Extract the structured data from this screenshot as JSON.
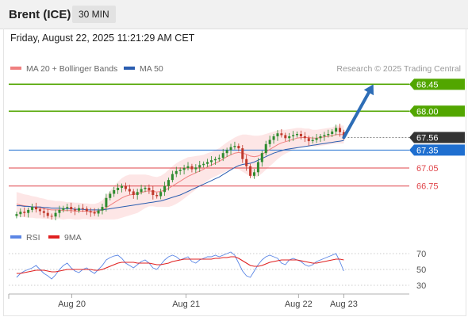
{
  "header": {
    "title": "Brent (ICE)",
    "interval": "30 MIN",
    "datetime": "Friday, August 22, 2025 11:21:29 AM CET"
  },
  "colors": {
    "support": "#e0454a",
    "resistance": "#52a600",
    "current": "#333333",
    "pivot": "#1f6fd0",
    "ma20": "#f08080",
    "ma50": "#2a5db0",
    "bollinger_fill": "#fde3e3",
    "candle_up": "#2e8b2e",
    "candle_down": "#c0392b",
    "arrow": "#2d6db6",
    "rsi": "#5b86e5",
    "rsi_ma": "#e02020"
  },
  "chart_data": [
    {
      "type": "candlestick",
      "legend": [
        {
          "name": "MA 20 + Bollinger Bands",
          "color": "#f08080"
        },
        {
          "name": "MA 50",
          "color": "#2a5db0"
        }
      ],
      "watermark": "Research © 2025 Trading Central",
      "ylim": [
        66.15,
        68.6
      ],
      "xlim": [
        0,
        100
      ],
      "x_ticks": [
        {
          "label": "Aug 20",
          "x": 16
        },
        {
          "label": "Aug 21",
          "x": 45
        },
        {
          "label": "Aug 22",
          "x": 73.5
        },
        {
          "label": "Aug 23",
          "x": 85
        }
      ],
      "levels": [
        {
          "value": 68.45,
          "label": "68.45",
          "role": "resistance",
          "style": "box"
        },
        {
          "value": 68.0,
          "label": "68.00",
          "role": "resistance",
          "style": "box"
        },
        {
          "value": 67.56,
          "label": "67.56",
          "role": "current",
          "style": "box"
        },
        {
          "value": 67.35,
          "label": "67.35",
          "role": "pivot",
          "style": "box"
        },
        {
          "value": 67.05,
          "label": "67.05",
          "role": "support",
          "style": "text"
        },
        {
          "value": 66.75,
          "label": "66.75",
          "role": "support",
          "style": "text"
        }
      ],
      "forecast_arrow": {
        "from": [
          85,
          67.56
        ],
        "to": [
          92.5,
          68.45
        ]
      },
      "close": [
        66.28,
        66.32,
        66.3,
        66.35,
        66.4,
        66.36,
        66.33,
        66.3,
        66.25,
        66.24,
        66.3,
        66.35,
        66.38,
        66.4,
        66.36,
        66.34,
        66.38,
        66.37,
        66.33,
        66.31,
        66.29,
        66.34,
        66.4,
        66.55,
        66.62,
        66.68,
        66.72,
        66.75,
        66.7,
        66.66,
        66.6,
        66.65,
        66.7,
        66.72,
        66.68,
        66.6,
        66.58,
        66.65,
        66.75,
        66.85,
        66.95,
        67.0,
        67.02,
        67.05,
        67.08,
        67.03,
        67.06,
        67.1,
        67.12,
        67.15,
        67.18,
        67.2,
        67.22,
        67.3,
        67.35,
        67.4,
        67.42,
        67.38,
        67.2,
        67.08,
        66.92,
        66.98,
        67.15,
        67.3,
        67.45,
        67.52,
        67.58,
        67.63,
        67.6,
        67.55,
        67.58,
        67.6,
        67.62,
        67.58,
        67.55,
        67.5,
        67.52,
        67.55,
        67.58,
        67.6,
        67.62,
        67.66,
        67.72,
        67.65,
        67.56
      ],
      "ma20": [
        66.45,
        66.43,
        66.42,
        66.41,
        66.4,
        66.39,
        66.38,
        66.37,
        66.36,
        66.35,
        66.35,
        66.35,
        66.34,
        66.34,
        66.34,
        66.33,
        66.33,
        66.33,
        66.33,
        66.32,
        66.32,
        66.33,
        66.35,
        66.39,
        66.43,
        66.47,
        66.51,
        66.55,
        66.58,
        66.6,
        66.61,
        66.62,
        66.64,
        66.66,
        66.67,
        66.66,
        66.65,
        66.66,
        66.68,
        66.71,
        66.75,
        66.79,
        66.83,
        66.87,
        66.91,
        66.94,
        66.97,
        67.0,
        67.03,
        67.07,
        67.1,
        67.13,
        67.16,
        67.2,
        67.24,
        67.27,
        67.3,
        67.31,
        67.3,
        67.28,
        67.25,
        67.24,
        67.25,
        67.28,
        67.32,
        67.36,
        67.4,
        67.44,
        67.47,
        67.49,
        67.51,
        67.53,
        67.55,
        67.56,
        67.56,
        67.56,
        67.55,
        67.55,
        67.56,
        67.57,
        67.58,
        67.59,
        67.61,
        67.61,
        67.61
      ],
      "band_width": [
        0.2,
        0.2,
        0.19,
        0.19,
        0.18,
        0.18,
        0.17,
        0.17,
        0.16,
        0.16,
        0.15,
        0.15,
        0.15,
        0.14,
        0.14,
        0.14,
        0.14,
        0.13,
        0.13,
        0.13,
        0.13,
        0.14,
        0.16,
        0.2,
        0.24,
        0.28,
        0.31,
        0.33,
        0.34,
        0.34,
        0.33,
        0.32,
        0.3,
        0.28,
        0.26,
        0.25,
        0.25,
        0.26,
        0.28,
        0.31,
        0.33,
        0.34,
        0.34,
        0.33,
        0.32,
        0.3,
        0.28,
        0.26,
        0.24,
        0.23,
        0.22,
        0.22,
        0.22,
        0.23,
        0.24,
        0.25,
        0.26,
        0.28,
        0.31,
        0.33,
        0.35,
        0.35,
        0.34,
        0.32,
        0.3,
        0.28,
        0.26,
        0.24,
        0.22,
        0.2,
        0.19,
        0.18,
        0.17,
        0.16,
        0.15,
        0.15,
        0.14,
        0.14,
        0.14,
        0.14,
        0.14,
        0.14,
        0.15,
        0.15,
        0.15
      ],
      "ma50": [
        66.42,
        66.42,
        66.41,
        66.41,
        66.4,
        66.4,
        66.4,
        66.39,
        66.39,
        66.38,
        66.38,
        66.38,
        66.37,
        66.37,
        66.37,
        66.36,
        66.36,
        66.36,
        66.35,
        66.35,
        66.35,
        66.35,
        66.35,
        66.36,
        66.37,
        66.38,
        66.39,
        66.4,
        66.41,
        66.42,
        66.43,
        66.44,
        66.45,
        66.46,
        66.47,
        66.48,
        66.49,
        66.5,
        66.52,
        66.54,
        66.56,
        66.58,
        66.6,
        66.63,
        66.66,
        66.69,
        66.72,
        66.75,
        66.78,
        66.81,
        66.84,
        66.87,
        66.9,
        66.94,
        66.98,
        67.02,
        67.06,
        67.09,
        67.11,
        67.12,
        67.13,
        67.15,
        67.18,
        67.21,
        67.24,
        67.27,
        67.3,
        67.32,
        67.34,
        67.36,
        67.37,
        67.38,
        67.39,
        67.4,
        67.41,
        67.42,
        67.43,
        67.44,
        67.45,
        67.46,
        67.47,
        67.48,
        67.49,
        67.5,
        67.51
      ]
    },
    {
      "type": "line",
      "legend": [
        {
          "name": "RSI",
          "color": "#5b86e5"
        },
        {
          "name": "9MA",
          "color": "#e02020"
        }
      ],
      "ylim": [
        22,
        78
      ],
      "y_ticks": [
        70,
        50,
        30
      ],
      "rsi": [
        40,
        45,
        48,
        50,
        52,
        55,
        50,
        45,
        42,
        38,
        43,
        50,
        55,
        58,
        52,
        48,
        46,
        50,
        52,
        48,
        45,
        50,
        55,
        62,
        65,
        67,
        68,
        64,
        58,
        55,
        52,
        56,
        60,
        62,
        58,
        52,
        50,
        56,
        62,
        66,
        68,
        66,
        62,
        64,
        66,
        60,
        58,
        62,
        64,
        66,
        66,
        68,
        66,
        68,
        70,
        72,
        68,
        58,
        48,
        42,
        40,
        48,
        56,
        62,
        66,
        68,
        66,
        64,
        58,
        56,
        62,
        64,
        62,
        60,
        56,
        54,
        56,
        60,
        62,
        64,
        66,
        68,
        70,
        60,
        48
      ],
      "rsi_ma": [
        45,
        45,
        46,
        47,
        48,
        49,
        49,
        49,
        48,
        47,
        47,
        48,
        49,
        50,
        50,
        50,
        50,
        50,
        50,
        50,
        49,
        49,
        50,
        52,
        54,
        56,
        58,
        59,
        59,
        59,
        59,
        58,
        58,
        58,
        58,
        57,
        56,
        56,
        57,
        58,
        60,
        61,
        62,
        63,
        63,
        63,
        63,
        63,
        63,
        63,
        63,
        64,
        64,
        65,
        65,
        66,
        66,
        64,
        61,
        58,
        55,
        54,
        54,
        55,
        57,
        59,
        60,
        61,
        62,
        62,
        62,
        62,
        62,
        61,
        60,
        59,
        58,
        58,
        59,
        60,
        61,
        62,
        63,
        63,
        62
      ]
    }
  ]
}
